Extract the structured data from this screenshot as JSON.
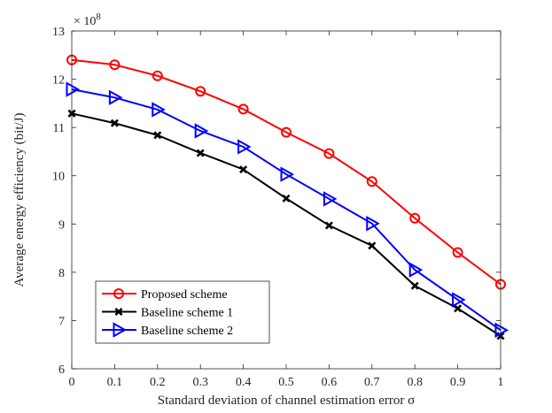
{
  "chart_data": {
    "type": "line",
    "title": "",
    "xlabel": "Standard deviation of channel estimation error σ",
    "ylabel": "Average energy efficiency (bit/J)",
    "y_multiplier": "× 10^8",
    "x": [
      0,
      0.1,
      0.2,
      0.3,
      0.4,
      0.5,
      0.6,
      0.7,
      0.8,
      0.9,
      1
    ],
    "xlim": [
      0,
      1
    ],
    "ylim": [
      6,
      13
    ],
    "xticks": [
      "0",
      "0.1",
      "0.2",
      "0.3",
      "0.4",
      "0.5",
      "0.6",
      "0.7",
      "0.8",
      "0.9",
      "1"
    ],
    "yticks": [
      "6",
      "7",
      "8",
      "9",
      "10",
      "11",
      "12",
      "13"
    ],
    "grid": false,
    "legend_position": "bottom-left",
    "series": [
      {
        "name": "Proposed scheme",
        "color": "#ff0000",
        "marker": "circle",
        "values": [
          12.4,
          12.3,
          12.07,
          11.75,
          11.38,
          10.9,
          10.46,
          9.88,
          9.12,
          8.41,
          7.75
        ]
      },
      {
        "name": "Baseline scheme 1",
        "color": "#000000",
        "marker": "x",
        "values": [
          11.29,
          11.09,
          10.84,
          10.47,
          10.13,
          9.53,
          8.97,
          8.55,
          7.72,
          7.25,
          6.68
        ]
      },
      {
        "name": "Baseline scheme 2",
        "color": "#0000ff",
        "marker": "triangle-right",
        "values": [
          11.79,
          11.62,
          11.37,
          10.93,
          10.6,
          10.03,
          9.52,
          9.01,
          8.05,
          7.43,
          6.8
        ]
      }
    ]
  }
}
